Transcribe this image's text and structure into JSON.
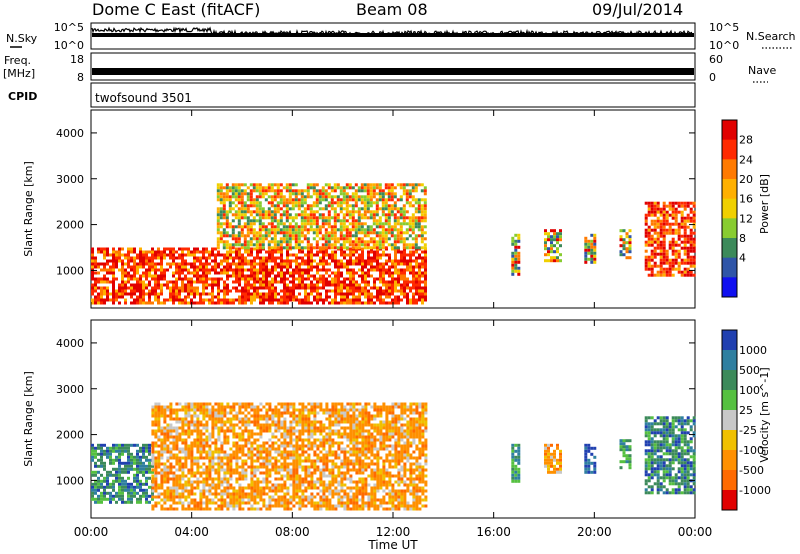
{
  "header": {
    "station": "Dome C East (fitACF)",
    "beam": "Beam 08",
    "date": "09/Jul/2014"
  },
  "top_panels": {
    "nsky_label": "N.Sky",
    "nsky_ticks": [
      "10^5",
      "10^0"
    ],
    "nsearch_label": "N.Search",
    "nsearch_ticks": [
      "10^5",
      "10^0"
    ],
    "freq_label_line1": "Freq.",
    "freq_label_line2": "[MHz]",
    "freq_ticks": [
      "18",
      "8"
    ],
    "nave_label": "Nave",
    "nave_ticks": [
      "60",
      "0"
    ],
    "cpid_label": "CPID",
    "cpid_value": "twofsound 3501"
  },
  "chart_data": [
    {
      "type": "heatmap",
      "name": "power",
      "ylabel": "Slant Range [km]",
      "ylim": [
        180,
        4500
      ],
      "yticks": [
        "4000",
        "3000",
        "2000",
        "1000"
      ],
      "colorbar_label": "Power [dB]",
      "colorbar_ticks": [
        "28",
        "24",
        "20",
        "16",
        "12",
        "8",
        "4"
      ],
      "colorbar_colors": [
        "#e00000",
        "#ff2a00",
        "#ff7a00",
        "#ffb000",
        "#f0d000",
        "#88cc30",
        "#3c8a5a",
        "#2f55a8",
        "#1010f0"
      ],
      "patches": [
        {
          "t0": 0.0,
          "t1": 13.3,
          "r0": 300,
          "r1": 1500,
          "level": "high"
        },
        {
          "t0": 5.0,
          "t1": 13.3,
          "r0": 1500,
          "r1": 2900,
          "level": "mid"
        },
        {
          "t0": 16.7,
          "t1": 17.0,
          "r0": 900,
          "r1": 1800,
          "level": "mixed"
        },
        {
          "t0": 18.0,
          "t1": 18.6,
          "r0": 1200,
          "r1": 1900,
          "level": "mixed"
        },
        {
          "t0": 19.6,
          "t1": 20.0,
          "r0": 1200,
          "r1": 1800,
          "level": "mixed"
        },
        {
          "t0": 21.0,
          "t1": 21.4,
          "r0": 1300,
          "r1": 1900,
          "level": "mixed"
        },
        {
          "t0": 22.0,
          "t1": 24.0,
          "r0": 900,
          "r1": 2500,
          "level": "high"
        }
      ]
    },
    {
      "type": "heatmap",
      "name": "velocity",
      "ylabel": "Slant Range [km]",
      "ylim": [
        180,
        4500
      ],
      "yticks": [
        "4000",
        "3000",
        "2000",
        "1000"
      ],
      "colorbar_label": "Velocity [m s^-1]",
      "colorbar_ticks": [
        "1000",
        "500",
        "100",
        "25",
        "-25",
        "-100",
        "-500",
        "-1000"
      ],
      "colorbar_colors": [
        "#2040b0",
        "#2f7fa0",
        "#3c8a5a",
        "#55c040",
        "#c8c8c8",
        "#f0c000",
        "#ff9000",
        "#ff6a00",
        "#e00000"
      ],
      "patches": [
        {
          "t0": 0.0,
          "t1": 2.4,
          "r0": 500,
          "r1": 1800,
          "level": "greenblue"
        },
        {
          "t0": 2.4,
          "t1": 13.3,
          "r0": 400,
          "r1": 2700,
          "level": "orange"
        },
        {
          "t0": 16.7,
          "t1": 17.0,
          "r0": 1000,
          "r1": 1800,
          "level": "green"
        },
        {
          "t0": 18.0,
          "t1": 18.6,
          "r0": 1200,
          "r1": 1800,
          "level": "orange"
        },
        {
          "t0": 19.6,
          "t1": 20.0,
          "r0": 1200,
          "r1": 1800,
          "level": "blue"
        },
        {
          "t0": 21.0,
          "t1": 21.4,
          "r0": 1300,
          "r1": 1900,
          "level": "green"
        },
        {
          "t0": 22.0,
          "t1": 24.0,
          "r0": 700,
          "r1": 2400,
          "level": "greenblue"
        }
      ]
    }
  ],
  "time_axis": {
    "xlabel": "Time UT",
    "ticks": [
      "00:00",
      "04:00",
      "08:00",
      "12:00",
      "16:00",
      "20:00",
      "00:00"
    ],
    "xlim": [
      0,
      24
    ]
  }
}
